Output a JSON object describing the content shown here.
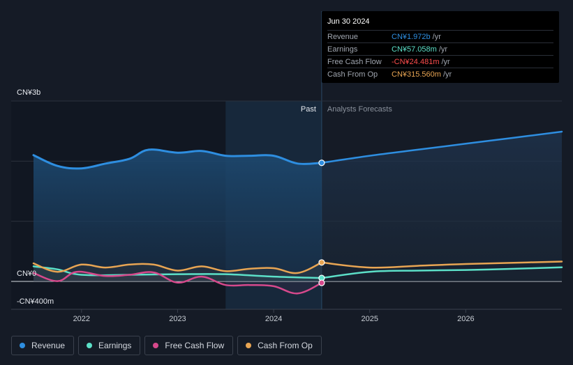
{
  "chart_data": {
    "type": "line",
    "currency_unit": "CN¥",
    "y_axis": {
      "max_label": "CN¥3b",
      "zero_label": "CN¥0",
      "min_label": "-CN¥400m",
      "ylim_millions": [
        -400,
        3000
      ]
    },
    "x_axis": {
      "ticks": [
        "2022",
        "2023",
        "2024",
        "2025",
        "2026"
      ],
      "range": [
        2021.5,
        2027.0
      ]
    },
    "past_label": "Past",
    "forecast_label": "Analysts Forecasts",
    "past_end": 2024.5,
    "series": [
      {
        "name": "Revenue",
        "color": "#2e8ee0",
        "points": [
          [
            2021.5,
            2100
          ],
          [
            2021.75,
            1920
          ],
          [
            2022.0,
            1880
          ],
          [
            2022.25,
            1960
          ],
          [
            2022.5,
            2040
          ],
          [
            2022.7,
            2190
          ],
          [
            2023.0,
            2140
          ],
          [
            2023.25,
            2170
          ],
          [
            2023.5,
            2090
          ],
          [
            2023.75,
            2090
          ],
          [
            2024.0,
            2090
          ],
          [
            2024.25,
            1960
          ],
          [
            2024.5,
            1972
          ]
        ],
        "forecast": [
          [
            2024.5,
            1972
          ],
          [
            2025.0,
            2090
          ],
          [
            2025.5,
            2190
          ],
          [
            2026.0,
            2290
          ],
          [
            2026.5,
            2390
          ],
          [
            2027.0,
            2490
          ]
        ]
      },
      {
        "name": "Earnings",
        "color": "#5ce0c8",
        "points": [
          [
            2021.5,
            250
          ],
          [
            2021.75,
            200
          ],
          [
            2022.0,
            110
          ],
          [
            2022.5,
            110
          ],
          [
            2023.0,
            120
          ],
          [
            2023.5,
            120
          ],
          [
            2024.0,
            80
          ],
          [
            2024.5,
            57
          ]
        ],
        "forecast": [
          [
            2024.5,
            57
          ],
          [
            2025.0,
            160
          ],
          [
            2025.5,
            180
          ],
          [
            2026.0,
            190
          ],
          [
            2026.5,
            210
          ],
          [
            2027.0,
            235
          ]
        ]
      },
      {
        "name": "Free Cash Flow",
        "color": "#d6498c",
        "points": [
          [
            2021.5,
            140
          ],
          [
            2021.75,
            5
          ],
          [
            2021.95,
            160
          ],
          [
            2022.25,
            90
          ],
          [
            2022.5,
            110
          ],
          [
            2022.75,
            150
          ],
          [
            2023.0,
            -20
          ],
          [
            2023.25,
            80
          ],
          [
            2023.5,
            -60
          ],
          [
            2023.75,
            -60
          ],
          [
            2024.0,
            -80
          ],
          [
            2024.25,
            -200
          ],
          [
            2024.5,
            -24
          ]
        ],
        "forecast": []
      },
      {
        "name": "Cash From Op",
        "color": "#e8a553",
        "points": [
          [
            2021.5,
            300
          ],
          [
            2021.75,
            160
          ],
          [
            2022.0,
            280
          ],
          [
            2022.25,
            230
          ],
          [
            2022.5,
            280
          ],
          [
            2022.75,
            280
          ],
          [
            2023.0,
            180
          ],
          [
            2023.25,
            250
          ],
          [
            2023.5,
            170
          ],
          [
            2023.75,
            210
          ],
          [
            2024.0,
            220
          ],
          [
            2024.25,
            140
          ],
          [
            2024.5,
            315
          ]
        ],
        "forecast": [
          [
            2024.5,
            315
          ],
          [
            2025.0,
            230
          ],
          [
            2025.5,
            260
          ],
          [
            2026.0,
            290
          ],
          [
            2026.5,
            310
          ],
          [
            2027.0,
            330
          ]
        ]
      }
    ]
  },
  "tooltip": {
    "date": "Jun 30 2024",
    "rows": [
      {
        "label": "Revenue",
        "value": "CN¥1.972b",
        "unit": "/yr",
        "color": "#2e8ee0"
      },
      {
        "label": "Earnings",
        "value": "CN¥57.058m",
        "unit": "/yr",
        "color": "#5ce0c8"
      },
      {
        "label": "Free Cash Flow",
        "value": "-CN¥24.481m",
        "unit": "/yr",
        "color": "#ff4d4d"
      },
      {
        "label": "Cash From Op",
        "value": "CN¥315.560m",
        "unit": "/yr",
        "color": "#e8a553"
      }
    ]
  },
  "legend": [
    {
      "label": "Revenue",
      "color": "#2e8ee0"
    },
    {
      "label": "Earnings",
      "color": "#5ce0c8"
    },
    {
      "label": "Free Cash Flow",
      "color": "#d6498c"
    },
    {
      "label": "Cash From Op",
      "color": "#e8a553"
    }
  ]
}
